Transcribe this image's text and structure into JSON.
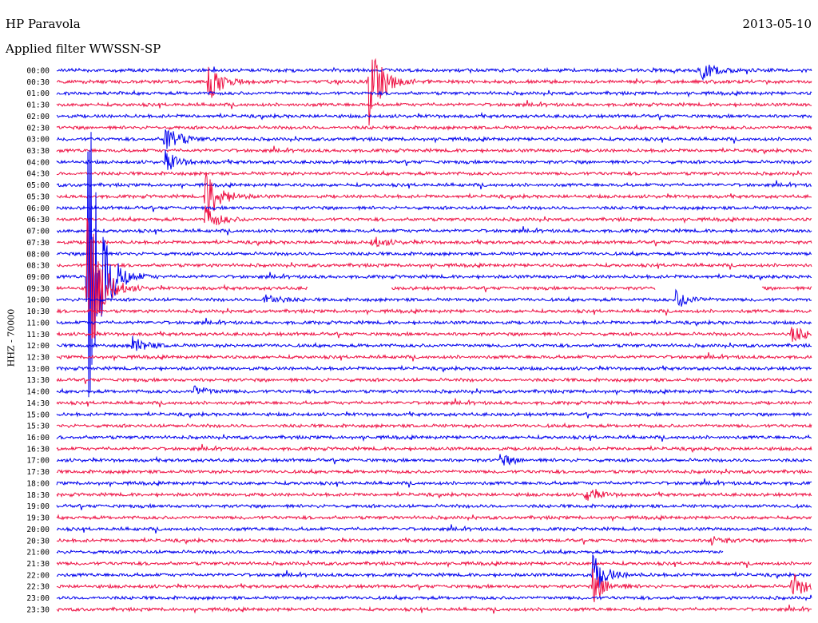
{
  "header": {
    "station": "HP Paravola",
    "filter": "Applied filter WWSSN-SP",
    "date": "2013-05-10",
    "channel_label": "HHZ - 70000"
  },
  "chart_data": {
    "type": "line",
    "title": "HP Paravola",
    "subtitle": "Applied filter WWSSN-SP",
    "date": "2013-05-10",
    "ylabel": "HHZ - 70000",
    "trace_colors": [
      "#0000ee",
      "#ee1144"
    ],
    "row_labels": [
      "00:00",
      "00:30",
      "01:00",
      "01:30",
      "02:00",
      "02:30",
      "03:00",
      "03:30",
      "04:00",
      "04:30",
      "05:00",
      "05:30",
      "06:00",
      "06:30",
      "07:00",
      "07:30",
      "08:00",
      "08:30",
      "09:00",
      "09:30",
      "10:00",
      "10:30",
      "11:00",
      "11:30",
      "12:00",
      "12:30",
      "13:00",
      "13:30",
      "14:00",
      "14:30",
      "15:00",
      "15:30",
      "16:00",
      "16:30",
      "17:00",
      "17:30",
      "18:00",
      "18:30",
      "19:00",
      "19:30",
      "20:00",
      "20:30",
      "21:00",
      "21:30",
      "22:00",
      "22:30",
      "23:00",
      "23:30"
    ],
    "events": [
      {
        "row": 0,
        "minute": 25.6,
        "amp": 16
      },
      {
        "row": 1,
        "minute": 12.4,
        "amp": 58
      },
      {
        "row": 1,
        "minute": 6.0,
        "amp": 26
      },
      {
        "row": 6,
        "minute": 4.3,
        "amp": 22
      },
      {
        "row": 8,
        "minute": 4.3,
        "amp": 14
      },
      {
        "row": 11,
        "minute": 5.9,
        "amp": 40
      },
      {
        "row": 13,
        "minute": 5.9,
        "amp": 16
      },
      {
        "row": 15,
        "minute": 12.5,
        "amp": 8
      },
      {
        "row": 18,
        "minute": 1.2,
        "amp": 260
      },
      {
        "row": 19,
        "minute": 1.2,
        "amp": 120
      },
      {
        "row": 20,
        "minute": 24.6,
        "amp": 12
      },
      {
        "row": 20,
        "minute": 8.2,
        "amp": 10
      },
      {
        "row": 23,
        "minute": 29.2,
        "amp": 12
      },
      {
        "row": 24,
        "minute": 3.0,
        "amp": 12
      },
      {
        "row": 28,
        "minute": 5.4,
        "amp": 8
      },
      {
        "row": 34,
        "minute": 17.6,
        "amp": 8
      },
      {
        "row": 37,
        "minute": 21.0,
        "amp": 10
      },
      {
        "row": 41,
        "minute": 26.0,
        "amp": 6
      },
      {
        "row": 44,
        "minute": 21.3,
        "amp": 26
      },
      {
        "row": 45,
        "minute": 21.3,
        "amp": 22
      },
      {
        "row": 45,
        "minute": 29.2,
        "amp": 18
      }
    ],
    "gaps": [
      {
        "row": 19,
        "from": 10.0,
        "to": 13.3
      },
      {
        "row": 19,
        "from": 23.8,
        "to": 28.0
      },
      {
        "row": 42,
        "from": 26.5,
        "to": 30.0
      }
    ]
  }
}
